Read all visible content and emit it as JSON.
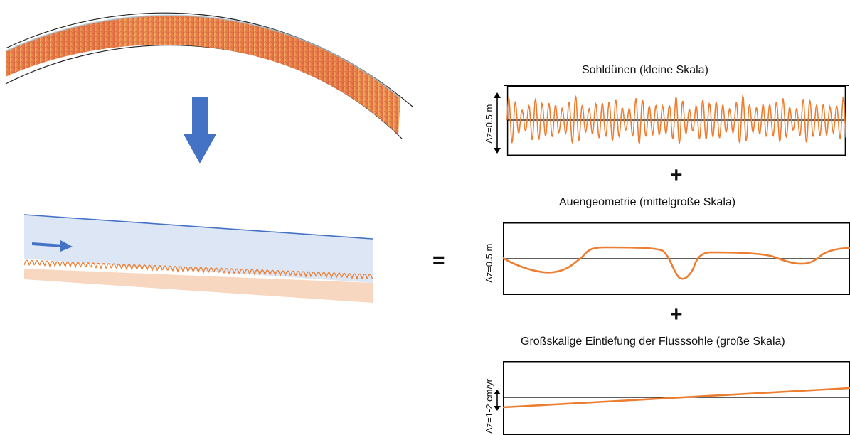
{
  "colors": {
    "river_blue": "#4472c4",
    "dune_orange": "#ed7d31",
    "water_fill": "#dce6f5",
    "bed_fill": "#f8d7c1"
  },
  "icons": {
    "down_arrow": "blue-down-arrow-icon",
    "flow_arrow": "blue-right-arrow-icon",
    "scale_arrow": "double-headed-vertical-arrow-icon"
  },
  "operators": {
    "equals": "=",
    "plus": "+"
  },
  "panels": [
    {
      "title": "Sohldünen (kleine Skala)",
      "ylabel": "Δz=0.5 m",
      "scale": "small"
    },
    {
      "title": "Auengeometrie (mittelgroße Skala)",
      "ylabel": "Δz=0.5 m",
      "scale": "medium"
    },
    {
      "title": "Großskalige Eintiefung der Flusssohle (große Skala)",
      "ylabel": "Δz=1-2 cm/yr",
      "scale": "large"
    }
  ]
}
